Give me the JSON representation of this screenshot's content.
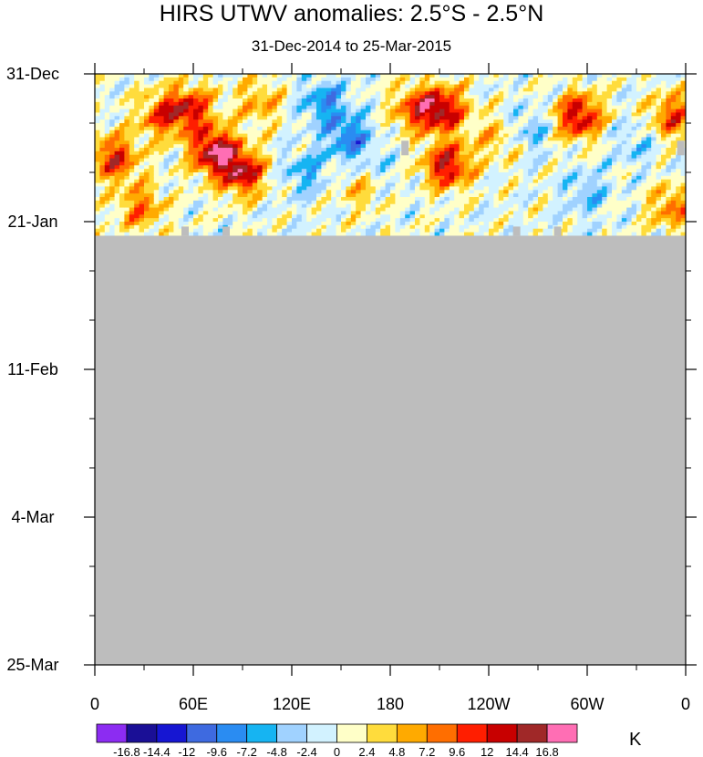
{
  "chart_data": {
    "type": "heatmap",
    "title": "HIRS UTWV anomalies: 2.5°S - 2.5°N",
    "subtitle": "31-Dec-2014 to 25-Mar-2015",
    "units": "K",
    "x_ticks": [
      "0",
      "60E",
      "120E",
      "180",
      "120W",
      "60W",
      "0"
    ],
    "y_ticks": [
      "31-Dec",
      "21-Jan",
      "11-Feb",
      "4-Mar",
      "25-Mar"
    ],
    "x_range_deg": [
      0,
      360
    ],
    "y_range_days": [
      0,
      84
    ],
    "data_valid_through_day": 23,
    "missing_color": "#bdbdbd",
    "colorbar_levels": [
      "-16.8",
      "-14.4",
      "-12",
      "-9.6",
      "-7.2",
      "-4.8",
      "-2.4",
      "0",
      "2.4",
      "4.8",
      "7.2",
      "9.6",
      "12",
      "14.4",
      "16.8"
    ],
    "colorbar_colors": [
      "#8c2cf2",
      "#1a0f96",
      "#1616d2",
      "#3e6ae0",
      "#2a8cf2",
      "#16b4f2",
      "#a0d2ff",
      "#d2f2ff",
      "#ffffc8",
      "#ffdc3c",
      "#ffaa00",
      "#ff6e00",
      "#ff1e00",
      "#c80000",
      "#a02828",
      "#ff6eb4"
    ],
    "anomaly_features": [
      {
        "lon": 12,
        "day": 12,
        "value": 12
      },
      {
        "lon": 40,
        "day": 6,
        "value": 9
      },
      {
        "lon": 58,
        "day": 5,
        "value": 12
      },
      {
        "lon": 73,
        "day": 11,
        "value": 16
      },
      {
        "lon": 90,
        "day": 14,
        "value": 14
      },
      {
        "lon": 28,
        "day": 19,
        "value": 8
      },
      {
        "lon": 100,
        "day": 4,
        "value": 6
      },
      {
        "lon": 140,
        "day": 4,
        "value": -8
      },
      {
        "lon": 155,
        "day": 9,
        "value": -9
      },
      {
        "lon": 128,
        "day": 14,
        "value": -6
      },
      {
        "lon": 170,
        "day": 14,
        "value": -4
      },
      {
        "lon": 195,
        "day": 5,
        "value": 9
      },
      {
        "lon": 212,
        "day": 5,
        "value": 14
      },
      {
        "lon": 215,
        "day": 13,
        "value": 14
      },
      {
        "lon": 163,
        "day": 16,
        "value": 6
      },
      {
        "lon": 245,
        "day": 9,
        "value": 5
      },
      {
        "lon": 265,
        "day": 8,
        "value": -5
      },
      {
        "lon": 295,
        "day": 6,
        "value": 14
      },
      {
        "lon": 300,
        "day": 17,
        "value": -5
      },
      {
        "lon": 330,
        "day": 10,
        "value": -4
      },
      {
        "lon": 352,
        "day": 6,
        "value": 10
      },
      {
        "lon": 352,
        "day": 19,
        "value": 8
      }
    ]
  }
}
